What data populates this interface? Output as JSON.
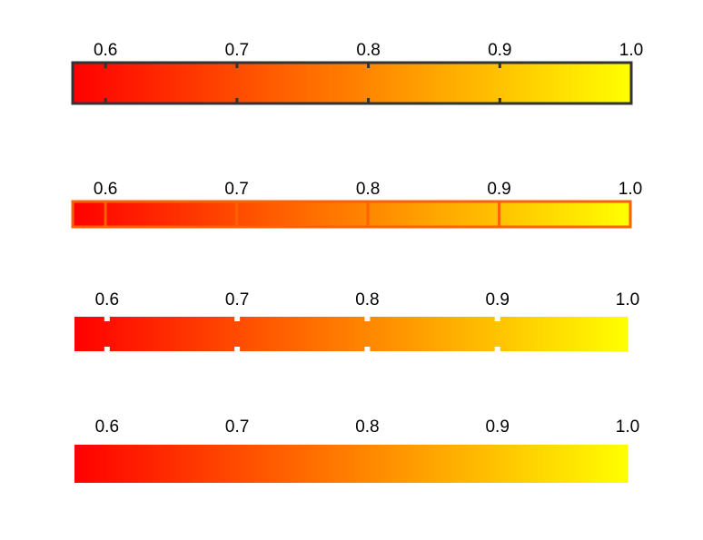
{
  "chart_data": {
    "type": "heatmap",
    "description_kind": "colorbar",
    "colormap": {
      "low_color": "#ff0000",
      "high_color": "#ffff00"
    },
    "value_range": [
      0.575,
      1.0
    ],
    "ticks": [
      0.6,
      0.7,
      0.8,
      0.9,
      1.0
    ],
    "tick_labels": [
      "0.6",
      "0.7",
      "0.8",
      "0.9",
      "1.0"
    ],
    "bars": [
      {
        "style": "dark frame with dark tick marks",
        "frame_color": "#333333",
        "tick_color": "#333333"
      },
      {
        "style": "orange frame with orange tick lines",
        "frame_color": "#ff6000",
        "tick_color": "#ff6000"
      },
      {
        "style": "no frame, white tick gaps",
        "frame_color": "",
        "tick_color": "#ffffff"
      },
      {
        "style": "plain gradient, no frame, no ticks",
        "frame_color": "",
        "tick_color": ""
      }
    ]
  }
}
